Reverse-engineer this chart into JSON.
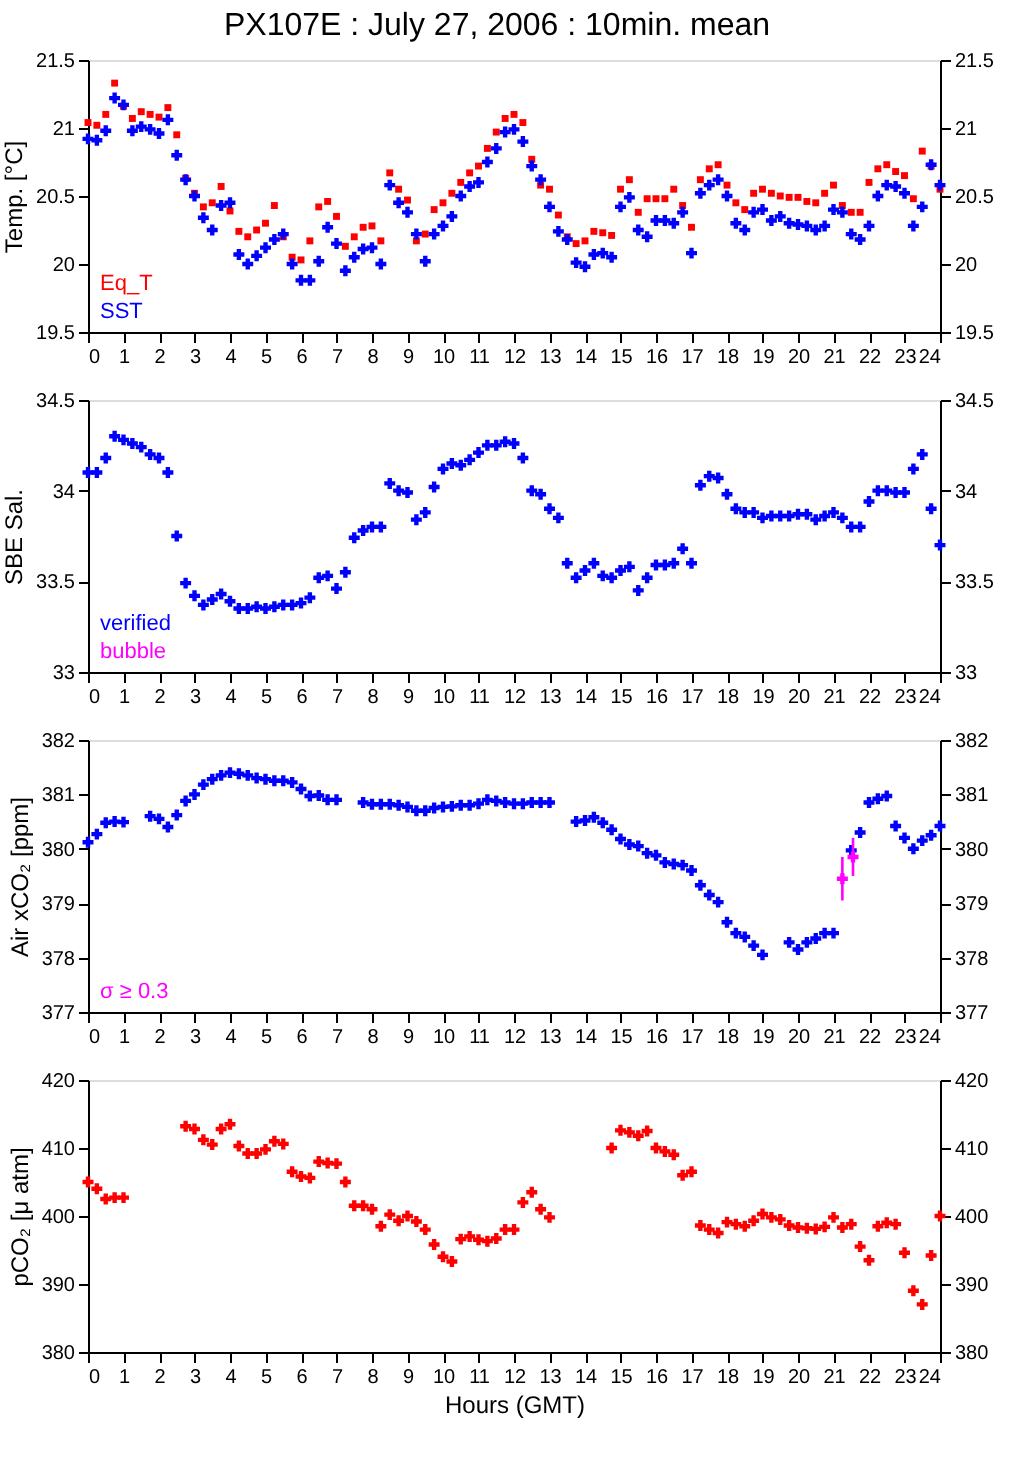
{
  "chart_data": [
    {
      "type": "scatter",
      "title": "PX107E : July 27, 2006 : 10min. mean",
      "ylabel": "Temp. [°C]",
      "xlim": [
        0,
        24
      ],
      "xticks": [
        0,
        1,
        2,
        3,
        4,
        5,
        6,
        7,
        8,
        9,
        10,
        11,
        12,
        13,
        14,
        15,
        16,
        17,
        18,
        19,
        20,
        21,
        22,
        23,
        24
      ],
      "ylim": [
        19.5,
        21.5
      ],
      "yticks": [
        19.5,
        20,
        20.5,
        21,
        21.5
      ],
      "y2lim": [
        19.5,
        21.5
      ],
      "y2ticks": [
        19.5,
        20,
        20.5,
        21,
        21.5
      ],
      "grid": false,
      "legend": "bottom left",
      "marker": "cross",
      "x": [
        0,
        0.25,
        0.5,
        0.75,
        1,
        1.25,
        1.5,
        1.75,
        2,
        2.25,
        2.5,
        2.75,
        3,
        3.25,
        3.5,
        3.75,
        4,
        4.25,
        4.5,
        4.75,
        5,
        5.25,
        5.5,
        5.75,
        6,
        6.25,
        6.5,
        6.75,
        7,
        7.25,
        7.5,
        7.75,
        8,
        8.25,
        8.5,
        8.75,
        9,
        9.25,
        9.5,
        9.75,
        10,
        10.25,
        10.5,
        10.75,
        11,
        11.25,
        11.5,
        11.75,
        12,
        12.25,
        12.5,
        12.75,
        13,
        13.25,
        13.5,
        13.75,
        14,
        14.25,
        14.5,
        14.75,
        15,
        15.25,
        15.5,
        15.75,
        16,
        16.25,
        16.5,
        16.75,
        17,
        17.25,
        17.5,
        17.75,
        18,
        18.25,
        18.5,
        18.75,
        19,
        19.25,
        19.5,
        19.75,
        20,
        20.25,
        20.5,
        20.75,
        21,
        21.25,
        21.5,
        21.75,
        22,
        22.25,
        22.5,
        22.75,
        23,
        23.25,
        23.5,
        23.75,
        24
      ],
      "series": [
        {
          "name": "Eq_T",
          "color": "#ff0000",
          "marker": "square",
          "values": [
            21.04,
            21.02,
            21.1,
            21.33,
            21.16,
            21.07,
            21.12,
            21.1,
            21.08,
            21.15,
            20.95,
            20.63,
            20.52,
            20.42,
            20.45,
            20.57,
            20.39,
            20.24,
            20.2,
            20.25,
            20.3,
            20.43,
            20.2,
            20.05,
            20.03,
            20.17,
            20.42,
            20.46,
            20.35,
            20.13,
            20.2,
            20.27,
            20.28,
            20.17,
            20.67,
            20.55,
            20.47,
            20.17,
            20.22,
            20.4,
            20.45,
            20.52,
            20.6,
            20.67,
            20.72,
            20.85,
            20.97,
            21.07,
            21.1,
            21.04,
            20.77,
            20.58,
            20.55,
            20.36,
            20.2,
            20.15,
            20.17,
            20.24,
            20.23,
            20.21,
            20.55,
            20.62,
            20.38,
            20.48,
            20.48,
            20.48,
            20.55,
            20.43,
            20.27,
            20.62,
            20.7,
            20.73,
            20.58,
            20.45,
            20.4,
            20.52,
            20.55,
            20.52,
            20.5,
            20.49,
            20.49,
            20.46,
            20.45,
            20.52,
            20.58,
            20.43,
            20.38,
            20.38,
            20.6,
            20.7,
            20.73,
            20.68,
            20.65,
            20.48,
            20.83,
            20.72,
            20.55
          ]
        },
        {
          "name": "SST",
          "color": "#0000ff",
          "values": [
            20.92,
            20.91,
            20.98,
            21.22,
            21.17,
            20.98,
            21.01,
            20.99,
            20.96,
            21.06,
            20.8,
            20.62,
            20.5,
            20.34,
            20.25,
            20.43,
            20.45,
            20.07,
            20.0,
            20.06,
            20.12,
            20.18,
            20.22,
            20.0,
            19.88,
            19.88,
            20.02,
            20.27,
            20.15,
            19.95,
            20.05,
            20.11,
            20.12,
            20.0,
            20.58,
            20.45,
            20.38,
            20.22,
            20.02,
            20.22,
            20.28,
            20.35,
            20.5,
            20.57,
            20.6,
            20.75,
            20.85,
            20.97,
            20.99,
            20.9,
            20.72,
            20.62,
            20.42,
            20.24,
            20.18,
            20.01,
            19.98,
            20.07,
            20.08,
            20.05,
            20.42,
            20.49,
            20.25,
            20.2,
            20.32,
            20.32,
            20.3,
            20.38,
            20.08,
            20.52,
            20.58,
            20.62,
            20.5,
            20.3,
            20.25,
            20.38,
            20.4,
            20.32,
            20.35,
            20.3,
            20.29,
            20.28,
            20.25,
            20.28,
            20.4,
            20.38,
            20.22,
            20.18,
            20.28,
            20.5,
            20.58,
            20.57,
            20.52,
            20.28,
            20.42,
            20.73,
            20.58
          ]
        }
      ]
    },
    {
      "type": "scatter",
      "ylabel": "SBE Sal.",
      "xlim": [
        0,
        24
      ],
      "xticks": [
        0,
        1,
        2,
        3,
        4,
        5,
        6,
        7,
        8,
        9,
        10,
        11,
        12,
        13,
        14,
        15,
        16,
        17,
        18,
        19,
        20,
        21,
        22,
        23,
        24
      ],
      "ylim": [
        33,
        34.5
      ],
      "yticks": [
        33,
        33.5,
        34,
        34.5
      ],
      "y2lim": [
        33,
        34.5
      ],
      "y2ticks": [
        33,
        33.5,
        34,
        34.5
      ],
      "grid": false,
      "legend": "bottom left",
      "marker": "cross",
      "x": [
        0,
        0.25,
        0.5,
        0.75,
        1,
        1.25,
        1.5,
        1.75,
        2,
        2.25,
        2.5,
        2.75,
        3,
        3.25,
        3.5,
        3.75,
        4,
        4.25,
        4.5,
        4.75,
        5,
        5.25,
        5.5,
        5.75,
        6,
        6.25,
        6.5,
        6.75,
        7,
        7.25,
        7.5,
        7.75,
        8,
        8.25,
        8.5,
        8.75,
        9,
        9.25,
        9.5,
        9.75,
        10,
        10.25,
        10.5,
        10.75,
        11,
        11.25,
        11.5,
        11.75,
        12,
        12.25,
        12.5,
        12.75,
        13,
        13.25,
        13.5,
        13.75,
        14,
        14.25,
        14.5,
        14.75,
        15,
        15.25,
        15.5,
        15.75,
        16,
        16.25,
        16.5,
        16.75,
        17,
        17.25,
        17.5,
        17.75,
        18,
        18.25,
        18.5,
        18.75,
        19,
        19.25,
        19.5,
        19.75,
        20,
        20.25,
        20.5,
        20.75,
        21,
        21.25,
        21.5,
        21.75,
        22,
        22.25,
        22.5,
        22.75,
        23,
        23.25,
        23.5,
        23.75,
        24
      ],
      "series": [
        {
          "name": "verified",
          "color": "#0000ff",
          "values": [
            34.1,
            34.1,
            34.18,
            34.3,
            34.28,
            34.26,
            34.24,
            34.2,
            34.18,
            34.1,
            33.75,
            33.49,
            33.42,
            33.37,
            33.4,
            33.43,
            33.39,
            33.35,
            33.35,
            33.36,
            33.35,
            33.36,
            33.37,
            33.37,
            33.38,
            33.41,
            33.52,
            33.53,
            33.46,
            33.55,
            33.74,
            33.78,
            33.8,
            33.8,
            34.04,
            34.0,
            33.99,
            33.84,
            33.88,
            34.02,
            34.12,
            34.15,
            34.14,
            34.17,
            34.21,
            34.25,
            34.25,
            34.27,
            34.26,
            34.18,
            34.0,
            33.98,
            33.9,
            33.85,
            33.6,
            33.52,
            33.56,
            33.6,
            33.53,
            33.52,
            33.56,
            33.58,
            33.45,
            33.52,
            33.59,
            33.59,
            33.6,
            33.68,
            33.6,
            34.03,
            34.08,
            34.07,
            33.98,
            33.9,
            33.88,
            33.88,
            33.85,
            33.86,
            33.86,
            33.86,
            33.87,
            33.87,
            33.84,
            33.86,
            33.88,
            33.85,
            33.8,
            33.8,
            33.94,
            34.0,
            34.0,
            33.99,
            33.99,
            34.12,
            34.2,
            33.9,
            33.7
          ]
        },
        {
          "name": "bubble",
          "color": "#ff00ff",
          "values": [
            null,
            null,
            null,
            null,
            null,
            null,
            null,
            null,
            null,
            null,
            null,
            null,
            null,
            null,
            null,
            null,
            null,
            null,
            null,
            null,
            null,
            null,
            null,
            null,
            null,
            null,
            null,
            null,
            null,
            null,
            null,
            null,
            null,
            null,
            null,
            null,
            null,
            null,
            null,
            null,
            null,
            null,
            null,
            null,
            null,
            null,
            null,
            null,
            null,
            null,
            null,
            null,
            null,
            null,
            null,
            null,
            null,
            null,
            null,
            null,
            null,
            null,
            null,
            null,
            null,
            null,
            null,
            null,
            null,
            null,
            null,
            null,
            null,
            null,
            null,
            null,
            null,
            null,
            null,
            null,
            null,
            null,
            null,
            null,
            null,
            null,
            null,
            null,
            null,
            null,
            null,
            null,
            null,
            null,
            null,
            null,
            null
          ]
        }
      ]
    },
    {
      "type": "scatter",
      "ylabel": "Air xCO₂ [ppm]",
      "xlim": [
        0,
        24
      ],
      "xticks": [
        0,
        1,
        2,
        3,
        4,
        5,
        6,
        7,
        8,
        9,
        10,
        11,
        12,
        13,
        14,
        15,
        16,
        17,
        18,
        19,
        20,
        21,
        22,
        23,
        24
      ],
      "ylim": [
        377,
        382
      ],
      "yticks": [
        377,
        378,
        379,
        380,
        381,
        382
      ],
      "y2lim": [
        377,
        382
      ],
      "y2ticks": [
        377,
        378,
        379,
        380,
        381,
        382
      ],
      "grid": false,
      "legend": "bottom left",
      "marker": "cross",
      "x": [
        0,
        0.25,
        0.5,
        0.75,
        1,
        1.25,
        1.5,
        1.75,
        2,
        2.25,
        2.5,
        2.75,
        3,
        3.25,
        3.5,
        3.75,
        4,
        4.25,
        4.5,
        4.75,
        5,
        5.25,
        5.5,
        5.75,
        6,
        6.25,
        6.5,
        6.75,
        7,
        7.25,
        7.5,
        7.75,
        8,
        8.25,
        8.5,
        8.75,
        9,
        9.25,
        9.5,
        9.75,
        10,
        10.25,
        10.5,
        10.75,
        11,
        11.25,
        11.5,
        11.75,
        12,
        12.25,
        12.5,
        12.75,
        13,
        13.25,
        13.5,
        13.75,
        14,
        14.25,
        14.5,
        14.75,
        15,
        15.25,
        15.5,
        15.75,
        16,
        16.25,
        16.5,
        16.75,
        17,
        17.25,
        17.5,
        17.75,
        18,
        18.25,
        18.5,
        18.75,
        19,
        19.25,
        19.5,
        19.75,
        20,
        20.25,
        20.5,
        20.75,
        21,
        21.25,
        21.5,
        21.75,
        22,
        22.25,
        22.5,
        22.75,
        23,
        23.25,
        23.5,
        23.75,
        24
      ],
      "series": [
        {
          "color": "#0000ff",
          "values": [
            380.12,
            380.27,
            380.48,
            380.5,
            380.49,
            null,
            null,
            380.6,
            380.55,
            380.4,
            380.62,
            380.88,
            381.0,
            381.18,
            381.28,
            381.35,
            381.4,
            381.38,
            381.35,
            381.3,
            381.28,
            381.25,
            381.25,
            381.22,
            381.1,
            380.97,
            380.98,
            380.9,
            380.9,
            null,
            null,
            380.85,
            380.82,
            380.82,
            380.82,
            380.8,
            380.77,
            380.7,
            380.7,
            380.75,
            380.77,
            380.78,
            380.8,
            380.8,
            380.83,
            380.9,
            380.88,
            380.85,
            380.83,
            380.83,
            380.85,
            380.85,
            380.85,
            null,
            null,
            380.5,
            380.52,
            380.58,
            380.48,
            380.35,
            380.18,
            380.08,
            380.05,
            379.92,
            379.88,
            379.75,
            379.72,
            379.7,
            379.6,
            379.33,
            379.15,
            379.02,
            378.65,
            378.45,
            378.38,
            378.22,
            378.05,
            null,
            null,
            378.28,
            378.15,
            378.28,
            378.35,
            378.45,
            378.45,
            null,
            379.97,
            380.3,
            380.85,
            380.92,
            380.97,
            380.42,
            380.2,
            380.0,
            380.15,
            380.25,
            380.42
          ]
        },
        {
          "name": "σ ≥ 0.3",
          "color": "#ff00ff",
          "x": [
            21.25,
            21.55
          ],
          "values": [
            379.45,
            379.85
          ],
          "errors": [
            0.4,
            0.35
          ]
        }
      ]
    },
    {
      "type": "scatter",
      "ylabel": "pCO₂ [μ atm]",
      "xlabel": "Hours (GMT)",
      "xlim": [
        0,
        24
      ],
      "xticks": [
        0,
        1,
        2,
        3,
        4,
        5,
        6,
        7,
        8,
        9,
        10,
        11,
        12,
        13,
        14,
        15,
        16,
        17,
        18,
        19,
        20,
        21,
        22,
        23,
        24
      ],
      "ylim": [
        380,
        420
      ],
      "yticks": [
        380,
        390,
        400,
        410,
        420
      ],
      "y2lim": [
        380,
        420
      ],
      "y2ticks": [
        380,
        390,
        400,
        410,
        420
      ],
      "grid": false,
      "marker": "cross",
      "x": [
        0,
        0.25,
        0.5,
        0.75,
        1,
        1.25,
        1.5,
        1.75,
        2,
        2.25,
        2.5,
        2.75,
        3,
        3.25,
        3.5,
        3.75,
        4,
        4.25,
        4.5,
        4.75,
        5,
        5.25,
        5.5,
        5.75,
        6,
        6.25,
        6.5,
        6.75,
        7,
        7.25,
        7.5,
        7.75,
        8,
        8.25,
        8.5,
        8.75,
        9,
        9.25,
        9.5,
        9.75,
        10,
        10.25,
        10.5,
        10.75,
        11,
        11.25,
        11.5,
        11.75,
        12,
        12.25,
        12.5,
        12.75,
        13,
        13.25,
        13.5,
        13.75,
        14,
        14.25,
        14.5,
        14.75,
        15,
        15.25,
        15.5,
        15.75,
        16,
        16.25,
        16.5,
        16.75,
        17,
        17.25,
        17.5,
        17.75,
        18,
        18.25,
        18.5,
        18.75,
        19,
        19.25,
        19.5,
        19.75,
        20,
        20.25,
        20.5,
        20.75,
        21,
        21.25,
        21.5,
        21.75,
        22,
        22.25,
        22.5,
        22.75,
        23,
        23.25,
        23.5,
        23.75,
        24
      ],
      "series": [
        {
          "color": "#ff0000",
          "values": [
            405,
            404,
            402.5,
            402.7,
            402.7,
            null,
            null,
            null,
            null,
            null,
            null,
            413.2,
            412.8,
            411.2,
            410.5,
            412.8,
            413.5,
            410.3,
            409.2,
            409.2,
            409.8,
            411,
            410.6,
            406.5,
            405.8,
            405.6,
            408,
            407.8,
            407.7,
            405,
            401.5,
            401.5,
            401,
            398.5,
            400.2,
            399.3,
            400,
            399.2,
            398,
            395.8,
            394,
            393.3,
            396.6,
            397,
            396.5,
            396.3,
            396.7,
            398,
            398,
            402,
            403.5,
            401,
            399.8,
            null,
            null,
            null,
            null,
            null,
            null,
            410,
            412.6,
            412.3,
            411.8,
            412.5,
            410,
            409.5,
            409,
            406,
            406.5,
            398.6,
            398,
            397.5,
            399.1,
            398.8,
            398.5,
            399.3,
            400.3,
            399.8,
            399.5,
            398.6,
            398.3,
            398.2,
            398.1,
            398.4,
            399.8,
            398.3,
            398.8,
            395.5,
            393.5,
            398.5,
            399,
            398.8,
            394.6,
            389,
            387,
            394.2,
            400
          ]
        }
      ]
    }
  ]
}
